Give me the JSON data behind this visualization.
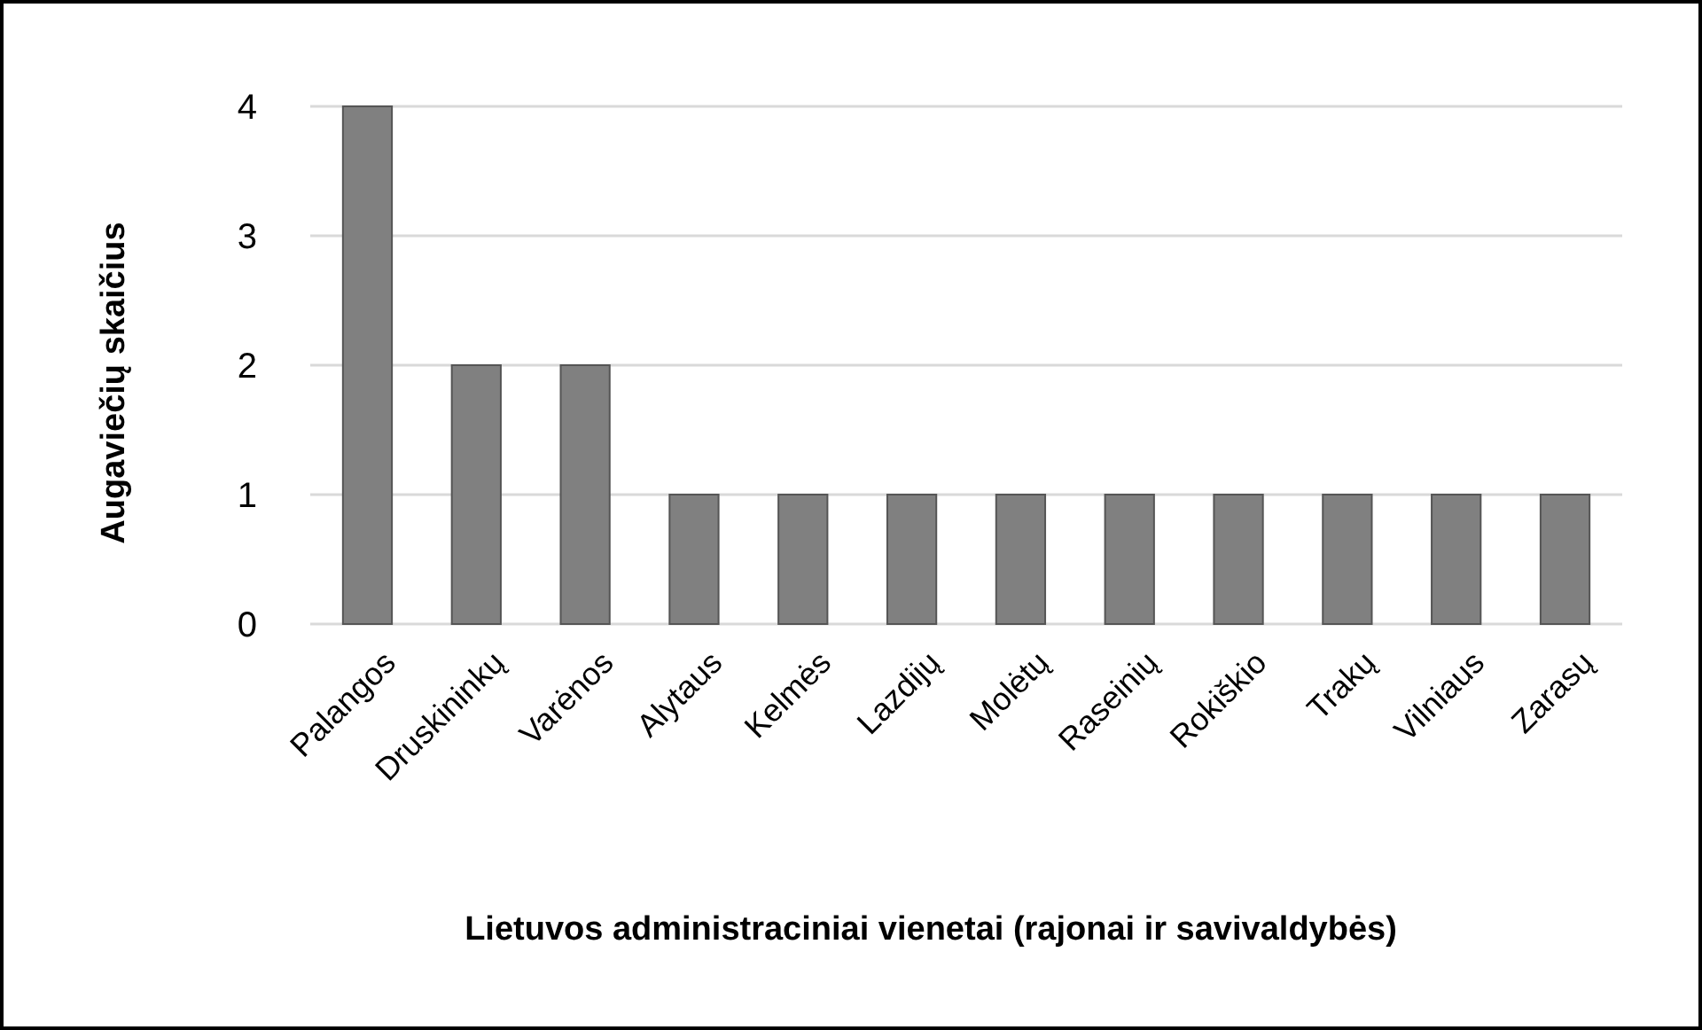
{
  "chart_data": {
    "type": "bar",
    "xlabel": "Lietuvos administraciniai vienetai (rajonai ir savivaldybės)",
    "ylabel": "Augaviečių skaičius",
    "categories": [
      "Palangos",
      "Druskininkų",
      "Varėnos",
      "Alytaus",
      "Kelmės",
      "Lazdijų",
      "Molėtų",
      "Raseinių",
      "Rokiškio",
      "Trakų",
      "Vilniaus",
      "Zarasų"
    ],
    "values": [
      4,
      2,
      2,
      1,
      1,
      1,
      1,
      1,
      1,
      1,
      1,
      1
    ],
    "color": "#808080",
    "ylim": [
      0,
      4
    ],
    "yticks": [
      0,
      1,
      2,
      3,
      4
    ],
    "grid": "y"
  }
}
